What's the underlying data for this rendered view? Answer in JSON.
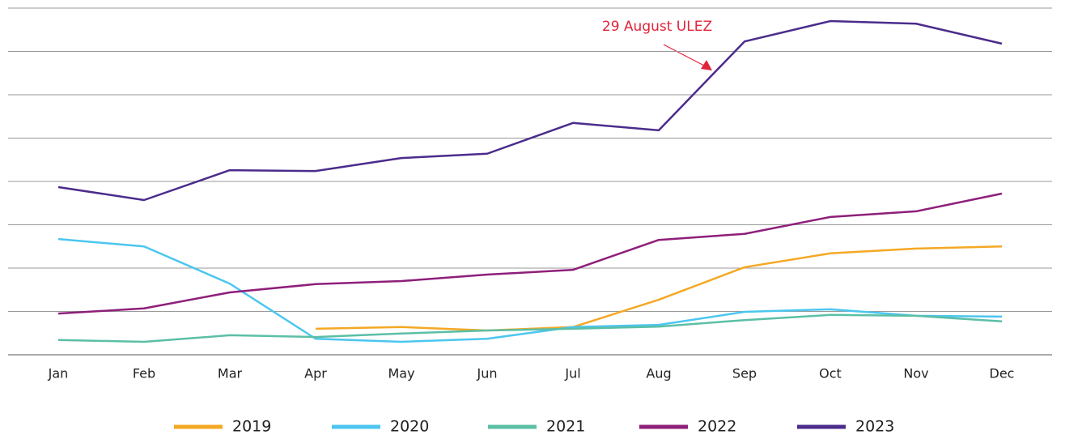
{
  "chart_data": {
    "type": "line",
    "categories": [
      "Jan",
      "Feb",
      "Mar",
      "Apr",
      "May",
      "Jun",
      "Jul",
      "Aug",
      "Sep",
      "Oct",
      "Nov",
      "Dec"
    ],
    "series": [
      {
        "name": "2019",
        "color": "#f4a824",
        "values": [
          null,
          null,
          null,
          0.6,
          0.64,
          0.56,
          0.64,
          1.27,
          2.02,
          2.34,
          2.45,
          2.5
        ]
      },
      {
        "name": "2020",
        "color": "#4cc6ef",
        "values": [
          2.67,
          2.5,
          1.64,
          0.37,
          0.3,
          0.37,
          0.64,
          0.69,
          0.99,
          1.05,
          0.9,
          0.88
        ]
      },
      {
        "name": "2021",
        "color": "#5bbfa6",
        "values": [
          0.34,
          0.3,
          0.45,
          0.41,
          0.49,
          0.56,
          0.6,
          0.65,
          0.8,
          0.92,
          0.9,
          0.77
        ]
      },
      {
        "name": "2022",
        "color": "#8e1f7a",
        "values": [
          0.95,
          1.07,
          1.44,
          1.63,
          1.7,
          1.85,
          1.96,
          2.65,
          2.79,
          3.18,
          3.31,
          3.72
        ]
      },
      {
        "name": "2023",
        "color": "#4b2c8c",
        "values": [
          3.87,
          3.57,
          4.26,
          4.24,
          4.54,
          4.64,
          5.35,
          5.18,
          7.23,
          7.7,
          7.64,
          7.18
        ]
      }
    ],
    "ylim": [
      0,
      8
    ],
    "yticks": [
      0,
      1,
      2,
      3,
      4,
      5,
      6,
      7,
      8
    ],
    "grid": true,
    "annotation": "29 August ULEZ",
    "annotation_color": "#e0243a"
  }
}
